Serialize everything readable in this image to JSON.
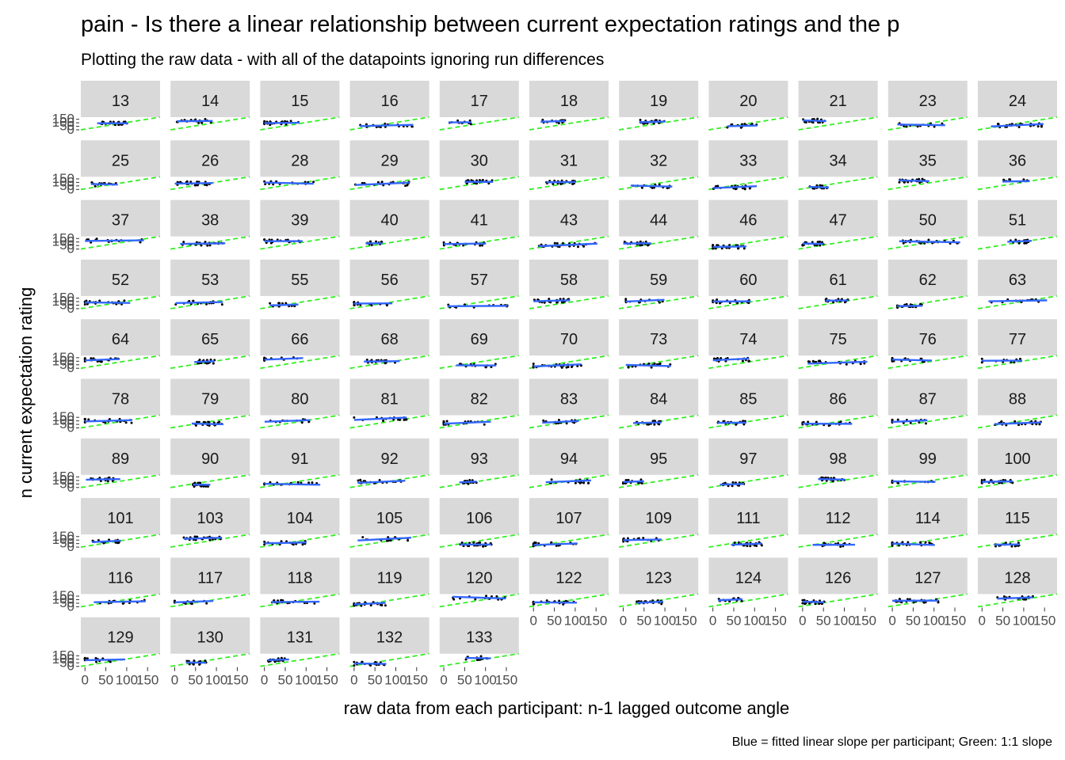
{
  "chart_data": {
    "type": "scatter",
    "title": "pain - Is there a linear relationship between current expectation ratings and the p",
    "subtitle": "Plotting the raw data - with all of the datapoints ignoring run differences",
    "xlabel": "raw data from each participant: n-1 lagged outcome angle",
    "ylabel": "n current expectation rating",
    "caption": "Blue = fitted linear slope per participant; Green: 1:1 slope",
    "x_ticks": [
      "0",
      "50",
      "100",
      "150"
    ],
    "y_ticks": [
      "0",
      "50",
      "100",
      "150"
    ],
    "xlim": [
      -10,
      180
    ],
    "ylim": [
      0,
      180
    ],
    "grid": false,
    "panels": [
      "13",
      "14",
      "15",
      "16",
      "17",
      "18",
      "19",
      "20",
      "21",
      "23",
      "24",
      "25",
      "26",
      "28",
      "29",
      "30",
      "31",
      "32",
      "33",
      "34",
      "35",
      "36",
      "37",
      "38",
      "39",
      "40",
      "41",
      "43",
      "44",
      "46",
      "47",
      "50",
      "51",
      "52",
      "53",
      "55",
      "56",
      "57",
      "58",
      "59",
      "60",
      "61",
      "62",
      "63",
      "64",
      "65",
      "66",
      "68",
      "69",
      "70",
      "73",
      "74",
      "75",
      "76",
      "77",
      "78",
      "79",
      "80",
      "81",
      "82",
      "83",
      "84",
      "85",
      "86",
      "87",
      "88",
      "89",
      "90",
      "91",
      "92",
      "93",
      "94",
      "95",
      "97",
      "98",
      "99",
      "100",
      "101",
      "103",
      "104",
      "105",
      "106",
      "107",
      "109",
      "111",
      "112",
      "114",
      "115",
      "116",
      "117",
      "118",
      "119",
      "120",
      "122",
      "123",
      "124",
      "126",
      "127",
      "128",
      "129",
      "130",
      "131",
      "132",
      "133"
    ],
    "colors": {
      "fit": "#3366ff",
      "identity": "#33ee22",
      "points": "#000000",
      "strip": "#d9d9d9"
    }
  }
}
